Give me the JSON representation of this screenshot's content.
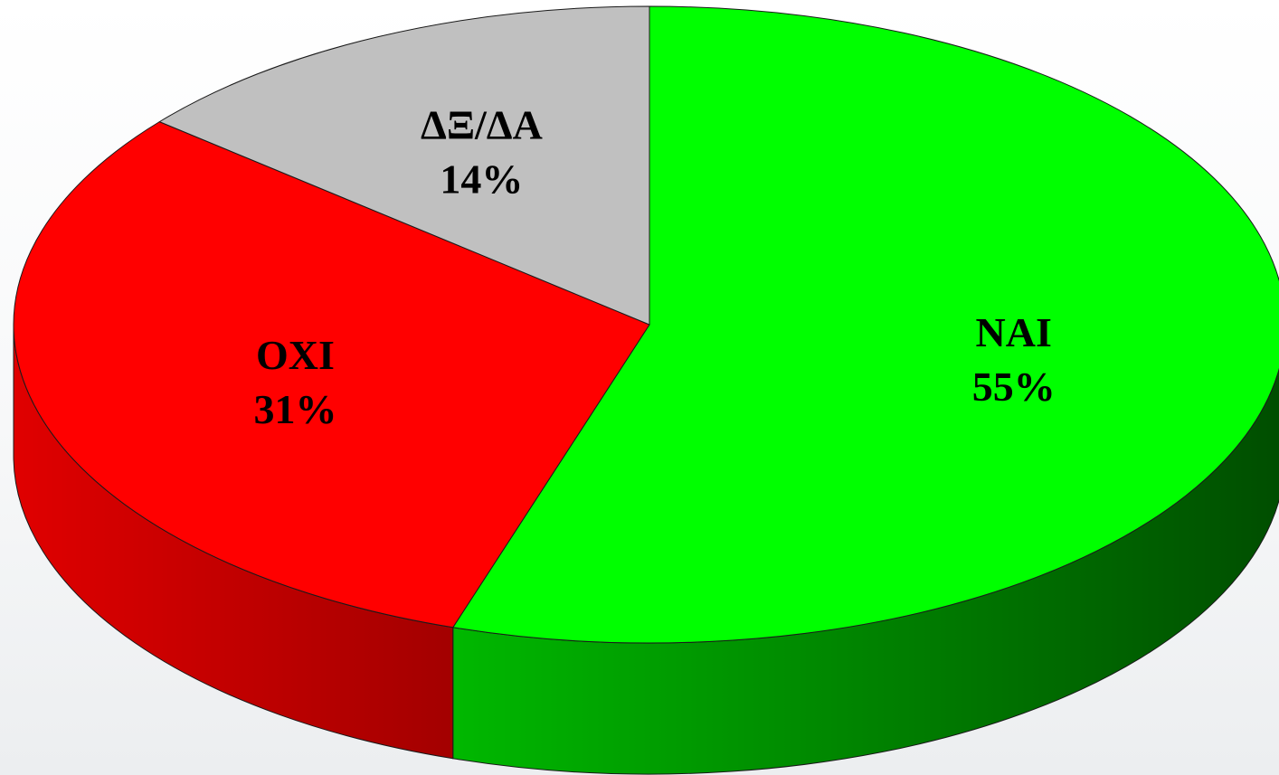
{
  "chart_data": {
    "type": "pie",
    "style": "3d",
    "series": [
      {
        "slices": [
          {
            "label": "NAI",
            "value": 55,
            "value_label": "55%",
            "color": "#00ff00",
            "side_color_dark": "#004d00",
            "side_color_light": "#00b800"
          },
          {
            "label": "OXI",
            "value": 31,
            "value_label": "31%",
            "color": "#ff0000",
            "side_color_dark": "#a30000",
            "side_color_light": "#e00000"
          },
          {
            "label": "ΔΞ/ΔΑ",
            "value": 14,
            "value_label": "14%",
            "color": "#c0c0c0",
            "side_color_dark": "#8a8a8a",
            "side_color_light": "#b0b0b0"
          }
        ]
      }
    ],
    "start_angle": "top",
    "direction": "clockwise",
    "legend": "none",
    "title": ""
  }
}
